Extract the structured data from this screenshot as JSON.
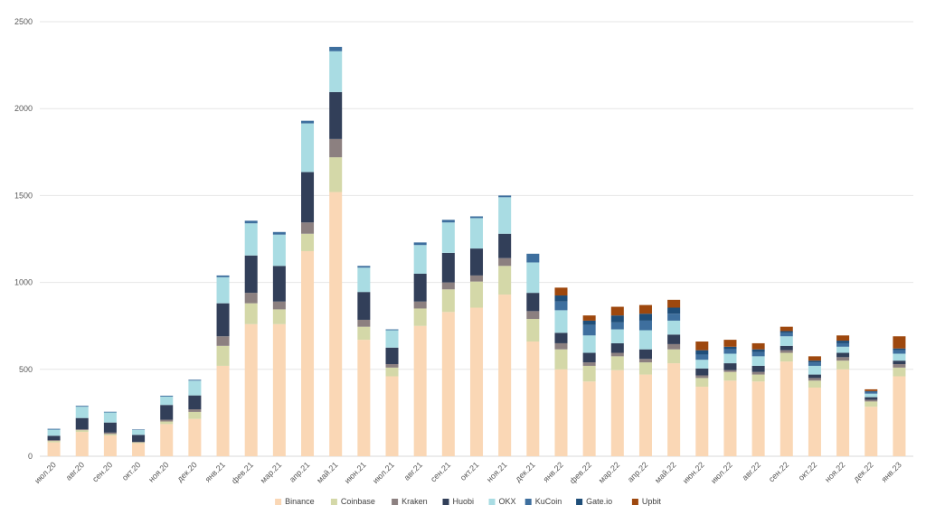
{
  "chart_data": {
    "type": "bar",
    "stacked": true,
    "title": "",
    "xlabel": "",
    "ylabel": "",
    "ylim": [
      0,
      2500
    ],
    "yticks": [
      0,
      500,
      1000,
      1500,
      2000,
      2500
    ],
    "grid": true,
    "legend_position": "bottom",
    "categories": [
      "июл.20",
      "авг.20",
      "сен.20",
      "окт.20",
      "ноя.20",
      "дек.20",
      "янв.21",
      "фев.21",
      "мар.21",
      "апр.21",
      "май.21",
      "июн.21",
      "июл.21",
      "авг.21",
      "сен.21",
      "окт.21",
      "ноя.21",
      "дек.21",
      "янв.22",
      "фев.22",
      "мар.22",
      "апр.22",
      "май.22",
      "июн.22",
      "июл.22",
      "авг.22",
      "сен.22",
      "окт.22",
      "ноя.22",
      "дек.22",
      "янв.23"
    ],
    "series": [
      {
        "name": "Binance",
        "color": "#fad7b5",
        "values": [
          80,
          140,
          120,
          75,
          185,
          215,
          520,
          760,
          760,
          1180,
          1520,
          670,
          460,
          750,
          830,
          855,
          930,
          660,
          500,
          430,
          495,
          470,
          535,
          400,
          435,
          430,
          545,
          395,
          500,
          285,
          460
        ]
      },
      {
        "name": "Coinbase",
        "color": "#d4d8a8",
        "values": [
          8,
          10,
          8,
          5,
          15,
          40,
          115,
          120,
          85,
          100,
          200,
          75,
          50,
          100,
          130,
          150,
          165,
          130,
          115,
          90,
          80,
          70,
          80,
          50,
          50,
          40,
          50,
          40,
          50,
          30,
          50
        ]
      },
      {
        "name": "Kraken",
        "color": "#8c8080",
        "values": [
          5,
          5,
          8,
          3,
          10,
          15,
          55,
          60,
          45,
          65,
          105,
          40,
          20,
          40,
          40,
          35,
          45,
          45,
          35,
          20,
          20,
          20,
          30,
          15,
          10,
          15,
          15,
          15,
          20,
          10,
          20
        ]
      },
      {
        "name": "Huobi",
        "color": "#323f59",
        "values": [
          25,
          65,
          58,
          40,
          85,
          80,
          190,
          215,
          205,
          290,
          270,
          160,
          95,
          160,
          170,
          155,
          140,
          105,
          60,
          55,
          55,
          55,
          55,
          40,
          40,
          35,
          25,
          20,
          25,
          15,
          20
        ]
      },
      {
        "name": "OKX",
        "color": "#a9dce3",
        "values": [
          35,
          65,
          58,
          28,
          48,
          85,
          150,
          185,
          180,
          280,
          235,
          140,
          100,
          165,
          175,
          175,
          210,
          175,
          130,
          100,
          80,
          110,
          80,
          50,
          55,
          55,
          55,
          50,
          35,
          20,
          40
        ]
      },
      {
        "name": "KuCoin",
        "color": "#3e6f9e",
        "values": [
          5,
          5,
          4,
          3,
          5,
          5,
          10,
          15,
          15,
          15,
          25,
          10,
          5,
          15,
          15,
          10,
          10,
          50,
          50,
          60,
          40,
          55,
          40,
          30,
          25,
          25,
          20,
          20,
          20,
          10,
          20
        ]
      },
      {
        "name": "Gate.io",
        "color": "#1f4e79",
        "values": [
          0,
          0,
          0,
          0,
          0,
          0,
          0,
          0,
          0,
          0,
          0,
          0,
          0,
          0,
          0,
          0,
          0,
          0,
          35,
          25,
          40,
          40,
          35,
          25,
          15,
          15,
          10,
          10,
          15,
          5,
          10
        ]
      },
      {
        "name": "Upbit",
        "color": "#9e480e",
        "values": [
          0,
          0,
          0,
          0,
          0,
          0,
          0,
          0,
          0,
          0,
          0,
          0,
          0,
          0,
          0,
          0,
          0,
          0,
          45,
          30,
          50,
          50,
          45,
          50,
          40,
          35,
          25,
          25,
          30,
          10,
          70
        ]
      }
    ]
  }
}
